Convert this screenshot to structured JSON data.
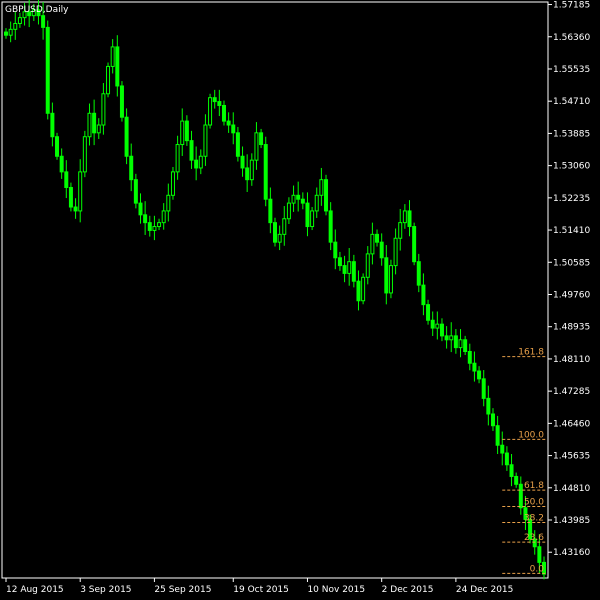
{
  "header": {
    "symbol": "GBPUSD",
    "timeframe": "Daily",
    "title": "GBPUSD,Daily"
  },
  "colors": {
    "background": "#000000",
    "candle": "#00ff00",
    "axis": "#ffffff",
    "fib": "#e8a04a"
  },
  "chart_data": {
    "type": "candlestick",
    "title": "GBPUSD,Daily",
    "ylim": [
      1.425,
      1.5725
    ],
    "y_ticks": [
      "1.57185",
      "1.56360",
      "1.55535",
      "1.54710",
      "1.53885",
      "1.53060",
      "1.52235",
      "1.51410",
      "1.50585",
      "1.49760",
      "1.48935",
      "1.48110",
      "1.47285",
      "1.46460",
      "1.45635",
      "1.44810",
      "1.43985",
      "1.43160"
    ],
    "y_tick_values": [
      1.57185,
      1.5636,
      1.55535,
      1.5471,
      1.53885,
      1.5306,
      1.52235,
      1.5141,
      1.50585,
      1.4976,
      1.48935,
      1.4811,
      1.47285,
      1.4646,
      1.45635,
      1.4481,
      1.43985,
      1.4316
    ],
    "x_ticks": [
      {
        "label": "12 Aug 2015",
        "bar": 0
      },
      {
        "label": "3 Sep 2015",
        "bar": 16
      },
      {
        "label": "25 Sep 2015",
        "bar": 32
      },
      {
        "label": "19 Oct 2015",
        "bar": 49
      },
      {
        "label": "10 Nov 2015",
        "bar": 65
      },
      {
        "label": "2 Dec 2015",
        "bar": 81
      },
      {
        "label": "24 Dec 2015",
        "bar": 97
      }
    ],
    "close_series": [
      1.564,
      1.5655,
      1.567,
      1.5685,
      1.57,
      1.569,
      1.5705,
      1.569,
      1.566,
      1.544,
      1.538,
      1.533,
      1.529,
      1.525,
      1.52,
      1.519,
      1.529,
      1.538,
      1.544,
      1.539,
      1.541,
      1.549,
      1.556,
      1.561,
      1.551,
      1.543,
      1.533,
      1.527,
      1.521,
      1.518,
      1.516,
      1.514,
      1.515,
      1.516,
      1.519,
      1.523,
      1.529,
      1.536,
      1.542,
      1.537,
      1.532,
      1.53,
      1.533,
      1.541,
      1.548,
      1.547,
      1.546,
      1.542,
      1.541,
      1.539,
      1.533,
      1.53,
      1.527,
      1.532,
      1.539,
      1.536,
      1.522,
      1.516,
      1.511,
      1.513,
      1.517,
      1.521,
      1.523,
      1.522,
      1.521,
      1.515,
      1.519,
      1.523,
      1.527,
      1.519,
      1.511,
      1.507,
      1.505,
      1.503,
      1.506,
      1.501,
      1.496,
      1.502,
      1.508,
      1.513,
      1.511,
      1.507,
      1.498,
      1.505,
      1.512,
      1.516,
      1.519,
      1.515,
      1.506,
      1.5,
      1.495,
      1.491,
      1.489,
      1.49,
      1.487,
      1.486,
      1.487,
      1.484,
      1.486,
      1.483,
      1.48,
      1.478,
      1.476,
      1.471,
      1.467,
      1.464,
      1.459,
      1.457,
      1.454,
      1.451,
      1.449,
      1.443,
      1.44,
      1.435,
      1.433,
      1.429,
      1.426
    ],
    "fibonacci": [
      {
        "level": "161.8",
        "price": 1.4817,
        "start_bar": 107
      },
      {
        "level": "100.0",
        "price": 1.4605,
        "start_bar": 107
      },
      {
        "level": "61.8",
        "price": 1.4475,
        "start_bar": 107
      },
      {
        "level": "50.0",
        "price": 1.4433,
        "start_bar": 107
      },
      {
        "level": "38.2",
        "price": 1.4392,
        "start_bar": 107
      },
      {
        "level": "23.6",
        "price": 1.4342,
        "start_bar": 107
      },
      {
        "level": "0.0",
        "price": 1.4262,
        "start_bar": 107
      }
    ]
  }
}
